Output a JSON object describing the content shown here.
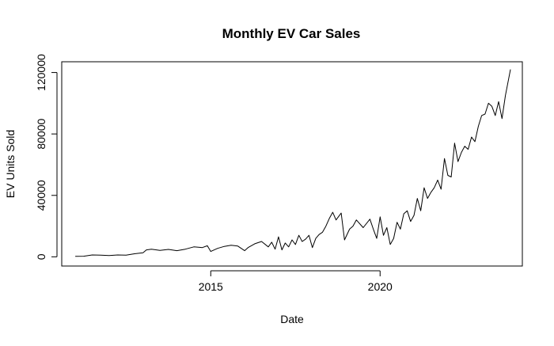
{
  "chart_data": {
    "type": "line",
    "title": "Monthly EV Car Sales",
    "xlabel": "Date",
    "ylabel": "EV Units Sold",
    "xlim": [
      2010.6,
      2024.2
    ],
    "ylim": [
      -6000,
      127000
    ],
    "x_ticks": [
      2015,
      2020
    ],
    "y_ticks": [
      0,
      40000,
      80000,
      120000
    ],
    "grid": false,
    "series": [
      {
        "color": "#000000",
        "x": [
          2011.0,
          2011.25,
          2011.5,
          2011.75,
          2012.0,
          2012.25,
          2012.5,
          2012.75,
          2013.0,
          2013.1,
          2013.25,
          2013.5,
          2013.75,
          2014.0,
          2014.25,
          2014.5,
          2014.75,
          2014.9,
          2015.0,
          2015.2,
          2015.4,
          2015.6,
          2015.8,
          2016.0,
          2016.1,
          2016.3,
          2016.5,
          2016.7,
          2016.8,
          2016.9,
          2017.0,
          2017.1,
          2017.2,
          2017.3,
          2017.4,
          2017.5,
          2017.6,
          2017.7,
          2017.8,
          2017.9,
          2018.0,
          2018.1,
          2018.2,
          2018.3,
          2018.4,
          2018.5,
          2018.6,
          2018.7,
          2018.85,
          2018.95,
          2019.1,
          2019.2,
          2019.3,
          2019.5,
          2019.7,
          2019.8,
          2019.9,
          2020.0,
          2020.1,
          2020.2,
          2020.3,
          2020.4,
          2020.5,
          2020.6,
          2020.7,
          2020.8,
          2020.9,
          2021.0,
          2021.1,
          2021.2,
          2021.3,
          2021.4,
          2021.5,
          2021.6,
          2021.7,
          2021.8,
          2021.9,
          2022.0,
          2022.1,
          2022.2,
          2022.3,
          2022.4,
          2022.5,
          2022.6,
          2022.7,
          2022.8,
          2022.9,
          2023.0,
          2023.1,
          2023.2,
          2023.3,
          2023.4,
          2023.5,
          2023.6,
          2023.7,
          2023.85
        ],
        "y": [
          300,
          400,
          1200,
          1100,
          800,
          1200,
          1100,
          2000,
          2600,
          4500,
          5000,
          4200,
          4800,
          4000,
          5000,
          6500,
          6000,
          7200,
          3500,
          5500,
          6800,
          7500,
          7000,
          4000,
          6000,
          8500,
          10000,
          6500,
          9500,
          5000,
          13000,
          4500,
          9000,
          6500,
          11000,
          8000,
          14000,
          10000,
          11500,
          14000,
          6000,
          12000,
          14500,
          16000,
          20000,
          25000,
          29000,
          24000,
          28500,
          11000,
          18000,
          20000,
          24000,
          19000,
          24500,
          18000,
          12000,
          26000,
          14000,
          19000,
          8000,
          12000,
          22500,
          18000,
          28000,
          30000,
          23000,
          27000,
          38000,
          30000,
          45000,
          38000,
          42000,
          45000,
          50000,
          44000,
          64000,
          53000,
          52000,
          74000,
          62000,
          68000,
          72000,
          70000,
          78000,
          75000,
          85000,
          92000,
          93000,
          100000,
          98000,
          92000,
          101000,
          90000,
          105000,
          122000
        ]
      }
    ]
  }
}
